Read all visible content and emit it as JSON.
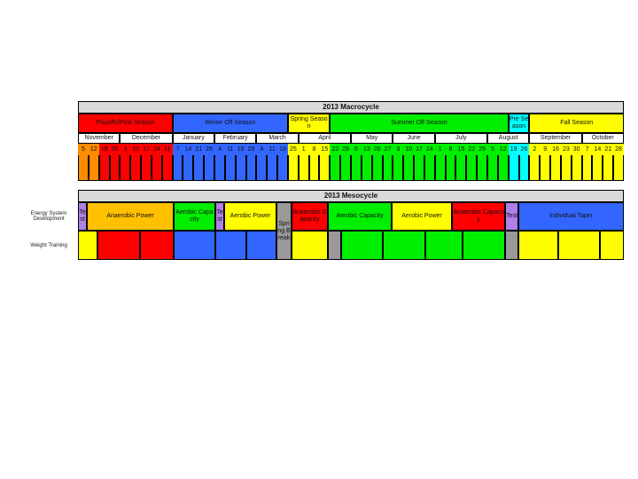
{
  "macrocycle": {
    "title": "2013 Macrocycle",
    "seasons": [
      {
        "label": "Playoffs/Post Season",
        "color": "#ff0000"
      },
      {
        "label": "Winter Off Season",
        "color": "#3366ff"
      },
      {
        "label": "Spring Season",
        "color": "#ffff00"
      },
      {
        "label": "Summer Off Season",
        "color": "#00ee00"
      },
      {
        "label": "Pre Season",
        "color": "#00ffff"
      },
      {
        "label": "Fall Season",
        "color": "#ffff00"
      }
    ],
    "months": [
      "November",
      "December",
      "January",
      "February",
      "March",
      "April",
      "May",
      "June",
      "July",
      "August",
      "September",
      "October"
    ],
    "weeks": [
      {
        "day": 5,
        "color": "#ff8c00"
      },
      {
        "day": 12,
        "color": "#ff8c00"
      },
      {
        "day": 19,
        "color": "#ff0000"
      },
      {
        "day": 26,
        "color": "#ff0000"
      },
      {
        "day": 3,
        "color": "#ff0000"
      },
      {
        "day": 10,
        "color": "#ff0000"
      },
      {
        "day": 17,
        "color": "#ff0000"
      },
      {
        "day": 24,
        "color": "#ff0000"
      },
      {
        "day": 31,
        "color": "#ff0000"
      },
      {
        "day": 7,
        "color": "#3366ff"
      },
      {
        "day": 14,
        "color": "#3366ff"
      },
      {
        "day": 21,
        "color": "#3366ff"
      },
      {
        "day": 28,
        "color": "#3366ff"
      },
      {
        "day": 4,
        "color": "#3366ff"
      },
      {
        "day": 11,
        "color": "#3366ff"
      },
      {
        "day": 18,
        "color": "#3366ff"
      },
      {
        "day": 25,
        "color": "#3366ff"
      },
      {
        "day": 4,
        "color": "#3366ff"
      },
      {
        "day": 11,
        "color": "#3366ff"
      },
      {
        "day": 18,
        "color": "#3366ff"
      },
      {
        "day": 25,
        "color": "#ffff00"
      },
      {
        "day": 1,
        "color": "#ffff00"
      },
      {
        "day": 8,
        "color": "#ffff00"
      },
      {
        "day": 15,
        "color": "#ffff00"
      },
      {
        "day": 22,
        "color": "#00ee00"
      },
      {
        "day": 29,
        "color": "#00ee00"
      },
      {
        "day": 6,
        "color": "#00ee00"
      },
      {
        "day": 13,
        "color": "#00ee00"
      },
      {
        "day": 20,
        "color": "#00ee00"
      },
      {
        "day": 27,
        "color": "#00ee00"
      },
      {
        "day": 3,
        "color": "#00ee00"
      },
      {
        "day": 10,
        "color": "#00ee00"
      },
      {
        "day": 17,
        "color": "#00ee00"
      },
      {
        "day": 24,
        "color": "#00ee00"
      },
      {
        "day": 1,
        "color": "#00ee00"
      },
      {
        "day": 8,
        "color": "#00ee00"
      },
      {
        "day": 15,
        "color": "#00ee00"
      },
      {
        "day": 22,
        "color": "#00ee00"
      },
      {
        "day": 29,
        "color": "#00ee00"
      },
      {
        "day": 5,
        "color": "#00ee00"
      },
      {
        "day": 12,
        "color": "#00ee00"
      },
      {
        "day": 19,
        "color": "#00ffff"
      },
      {
        "day": 26,
        "color": "#00ffff"
      },
      {
        "day": 2,
        "color": "#ffff00"
      },
      {
        "day": 9,
        "color": "#ffff00"
      },
      {
        "day": 16,
        "color": "#ffff00"
      },
      {
        "day": 23,
        "color": "#ffff00"
      },
      {
        "day": 30,
        "color": "#ffff00"
      },
      {
        "day": 7,
        "color": "#ffff00"
      },
      {
        "day": 14,
        "color": "#ffff00"
      },
      {
        "day": 21,
        "color": "#ffff00"
      },
      {
        "day": 28,
        "color": "#ffff00"
      }
    ]
  },
  "mesocycle": {
    "title": "2013 Mesocycle",
    "rows": [
      {
        "label": "Energy System Development",
        "cells": [
          {
            "label": "Test",
            "color": "#b07fe8"
          },
          {
            "label": "Anaerobic Power",
            "color": "#ffc000"
          },
          {
            "label": "Aerobic Capacity",
            "color": "#00ee00"
          },
          {
            "label": "Test",
            "color": "#b07fe8"
          },
          {
            "label": "Aerobic Power",
            "color": "#ffff00"
          },
          {
            "label": "Spring Break",
            "color": "#999999"
          },
          {
            "label": "Anaerobic Capacity",
            "color": "#ff0000"
          },
          {
            "label": "Aerobic Capacity",
            "color": "#00ee00"
          },
          {
            "label": "Aerobic Power",
            "color": "#ffff00"
          },
          {
            "label": "Anaerobic Capacity",
            "color": "#ff0000"
          },
          {
            "label": "Test",
            "color": "#b07fe8"
          },
          {
            "label": "Individual Taper",
            "color": "#3366ff"
          }
        ]
      },
      {
        "label": "Weight Training",
        "cells": [
          {
            "color": "#ffff00"
          },
          {
            "color": "#ff0000"
          },
          {
            "color": "#ff0000"
          },
          {
            "color": "#3366ff"
          },
          {
            "color": "#3366ff"
          },
          {
            "color": "#3366ff"
          },
          {
            "color": "#ffff00"
          },
          {
            "color": "#999999"
          },
          {
            "color": "#00ee00"
          },
          {
            "color": "#00ee00"
          },
          {
            "color": "#00ee00"
          },
          {
            "color": "#00ee00"
          },
          {
            "color": "#999999"
          },
          {
            "color": "#ffff00"
          },
          {
            "color": "#ffff00"
          },
          {
            "color": "#ffff00"
          }
        ]
      }
    ]
  }
}
